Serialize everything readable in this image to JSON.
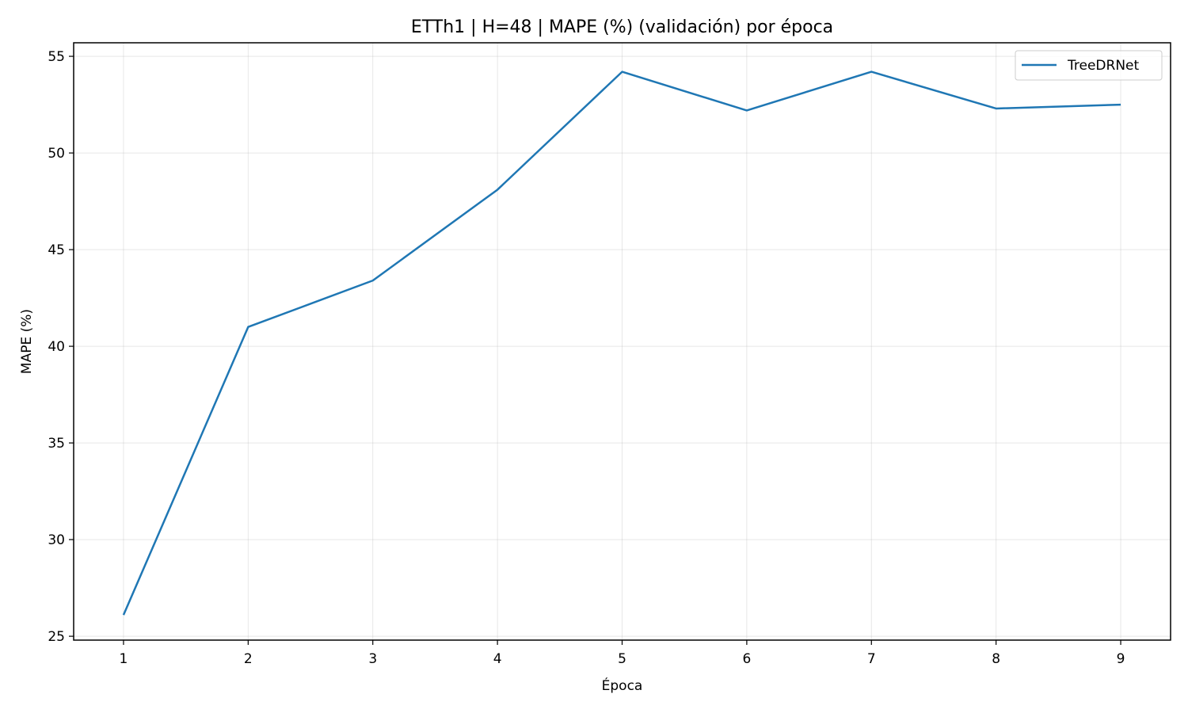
{
  "chart_data": {
    "type": "line",
    "title": "ETTh1 | H=48 | MAPE (%) (validación) por época",
    "xlabel": "Época",
    "ylabel": "MAPE (%)",
    "x": [
      1,
      2,
      3,
      4,
      5,
      6,
      7,
      8,
      9
    ],
    "xlim": [
      0.6,
      9.4
    ],
    "ylim": [
      24.8,
      55.7
    ],
    "xticks": [
      1,
      2,
      3,
      4,
      5,
      6,
      7,
      8,
      9
    ],
    "yticks": [
      25,
      30,
      35,
      40,
      45,
      50,
      55
    ],
    "grid": true,
    "legend_position": "top-right",
    "series": [
      {
        "name": "TreeDRNet",
        "color": "#1f77b4",
        "values": [
          26.1,
          41.0,
          43.4,
          48.1,
          54.2,
          52.2,
          54.2,
          52.3,
          52.5
        ]
      }
    ]
  }
}
